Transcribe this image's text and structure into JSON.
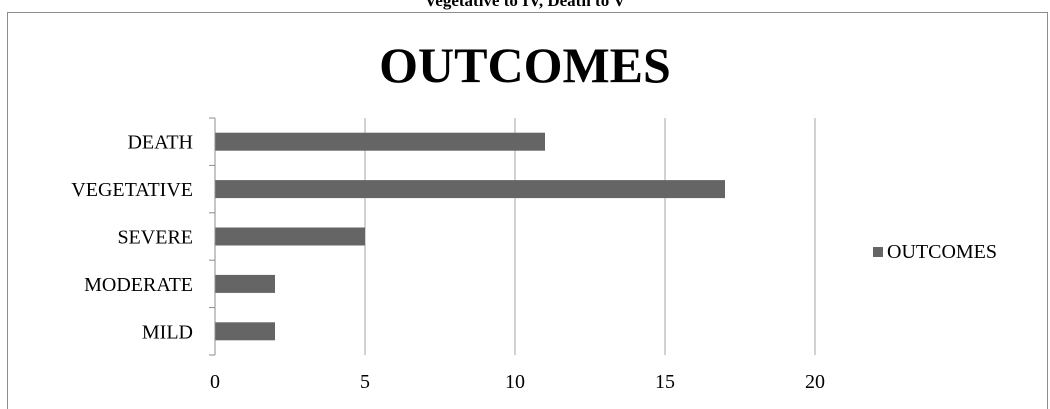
{
  "caption": "Vegetative to IV, Death to V",
  "chart_data": {
    "type": "bar",
    "orientation": "horizontal",
    "title": "OUTCOMES",
    "categories": [
      "MILD",
      "MODERATE",
      "SEVERE",
      "VEGETATIVE",
      "DEATH"
    ],
    "series": [
      {
        "name": "OUTCOMES",
        "values": [
          2,
          2,
          5,
          17,
          11
        ]
      }
    ],
    "xlim": [
      0,
      20
    ],
    "xticks": [
      0,
      5,
      10,
      15,
      20
    ],
    "grid": true,
    "legend": "right",
    "colors": {
      "bar": "#656565",
      "grid": "#a6a6a6",
      "axis": "#8c8c8c"
    }
  }
}
